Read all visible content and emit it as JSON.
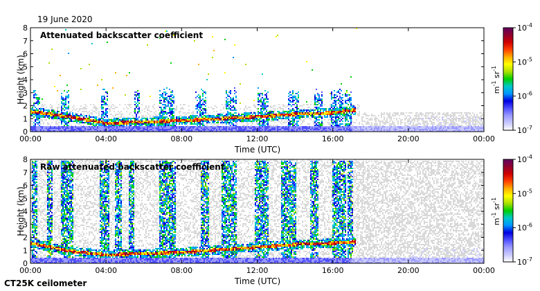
{
  "date_label": "19 June 2020",
  "instrument_label": "CT25K ceilometer",
  "colors": {
    "background": "#ffffff",
    "missing": "#d9d9d9",
    "colormap": [
      "#ffffff",
      "#c8c8ff",
      "#9a9aff",
      "#4f4fff",
      "#0000e0",
      "#0096ff",
      "#00c8c8",
      "#00d000",
      "#aae000",
      "#ffff00",
      "#ffb000",
      "#ff4000",
      "#d00000",
      "#900030",
      "#600060"
    ]
  },
  "chart_data": [
    {
      "type": "heatmap",
      "title": "Attenuated backscatter coefficient",
      "xlabel": "Time (UTC)",
      "ylabel": "Height (km)",
      "x_ticks": [
        "00:00",
        "04:00",
        "08:00",
        "12:00",
        "16:00",
        "20:00",
        "00:00"
      ],
      "y_ticks": [
        "0",
        "1",
        "2",
        "3",
        "4",
        "5",
        "6",
        "7",
        "8"
      ],
      "ylim": [
        0,
        8
      ],
      "xlim_hours": [
        0,
        24
      ],
      "colorbar": {
        "scale": "log",
        "range": [
          1e-07,
          0.0001
        ],
        "ticks": [
          {
            "base": "10",
            "exp": "-4",
            "value": 0.0001
          },
          {
            "base": "10",
            "exp": "-5",
            "value": 1e-05
          },
          {
            "base": "10",
            "exp": "-6",
            "value": 1e-06
          },
          {
            "base": "10",
            "exp": "-7",
            "value": 1e-07
          }
        ],
        "unit_parts": [
          "m",
          "-1",
          " sr",
          "-1"
        ]
      },
      "features": {
        "cloud_layer_heights_km": [
          [
            0,
            1.6
          ],
          [
            2,
            1.2
          ],
          [
            4,
            0.7
          ],
          [
            8,
            0.9
          ],
          [
            12,
            1.2
          ],
          [
            14,
            1.4
          ],
          [
            16,
            1.5
          ],
          [
            17,
            1.7
          ]
        ],
        "signal_columns_hours": [
          [
            0.3,
            0.4
          ],
          [
            1.8,
            0.5
          ],
          [
            3.9,
            0.4
          ],
          [
            5.6,
            0.3
          ],
          [
            7.2,
            0.8
          ],
          [
            9.0,
            0.6
          ],
          [
            10.6,
            0.6
          ],
          [
            12.3,
            0.6
          ],
          [
            13.9,
            0.6
          ],
          [
            15.2,
            0.4
          ],
          [
            16.2,
            0.6
          ],
          [
            16.8,
            0.4
          ]
        ],
        "noise_region_hours": [
          17.5,
          24
        ]
      }
    },
    {
      "type": "heatmap",
      "title": "Raw attenuated backscatter coefficient",
      "xlabel": "Time (UTC)",
      "ylabel": "Height (km)",
      "x_ticks": [
        "00:00",
        "04:00",
        "08:00",
        "12:00",
        "16:00",
        "20:00",
        "00:00"
      ],
      "y_ticks": [
        "0",
        "1",
        "2",
        "3",
        "4",
        "5",
        "6",
        "7",
        "8"
      ],
      "ylim": [
        0,
        8
      ],
      "xlim_hours": [
        0,
        24
      ],
      "colorbar": {
        "scale": "log",
        "range": [
          1e-07,
          0.0001
        ],
        "ticks": [
          {
            "base": "10",
            "exp": "-4",
            "value": 0.0001
          },
          {
            "base": "10",
            "exp": "-5",
            "value": 1e-05
          },
          {
            "base": "10",
            "exp": "-6",
            "value": 1e-06
          },
          {
            "base": "10",
            "exp": "-7",
            "value": 1e-07
          }
        ],
        "unit_parts": [
          "m",
          "-1",
          " sr",
          "-1"
        ]
      },
      "features": {
        "cloud_layer_heights_km": [
          [
            0,
            1.6
          ],
          [
            2,
            1.0
          ],
          [
            4,
            0.7
          ],
          [
            8,
            0.9
          ],
          [
            12,
            1.3
          ],
          [
            14,
            1.5
          ],
          [
            16,
            1.6
          ],
          [
            17,
            1.7
          ]
        ],
        "signal_columns_hours": [
          [
            0.2,
            0.3
          ],
          [
            1.0,
            0.3
          ],
          [
            1.9,
            0.6
          ],
          [
            3.9,
            0.5
          ],
          [
            4.6,
            0.4
          ],
          [
            5.3,
            0.3
          ],
          [
            7.2,
            0.9
          ],
          [
            9.2,
            0.5
          ],
          [
            10.5,
            0.8
          ],
          [
            12.2,
            0.8
          ],
          [
            13.6,
            0.8
          ],
          [
            15.0,
            0.4
          ],
          [
            16.3,
            0.7
          ],
          [
            16.9,
            0.3
          ]
        ],
        "noise_region_hours": [
          17.2,
          24
        ]
      }
    }
  ]
}
